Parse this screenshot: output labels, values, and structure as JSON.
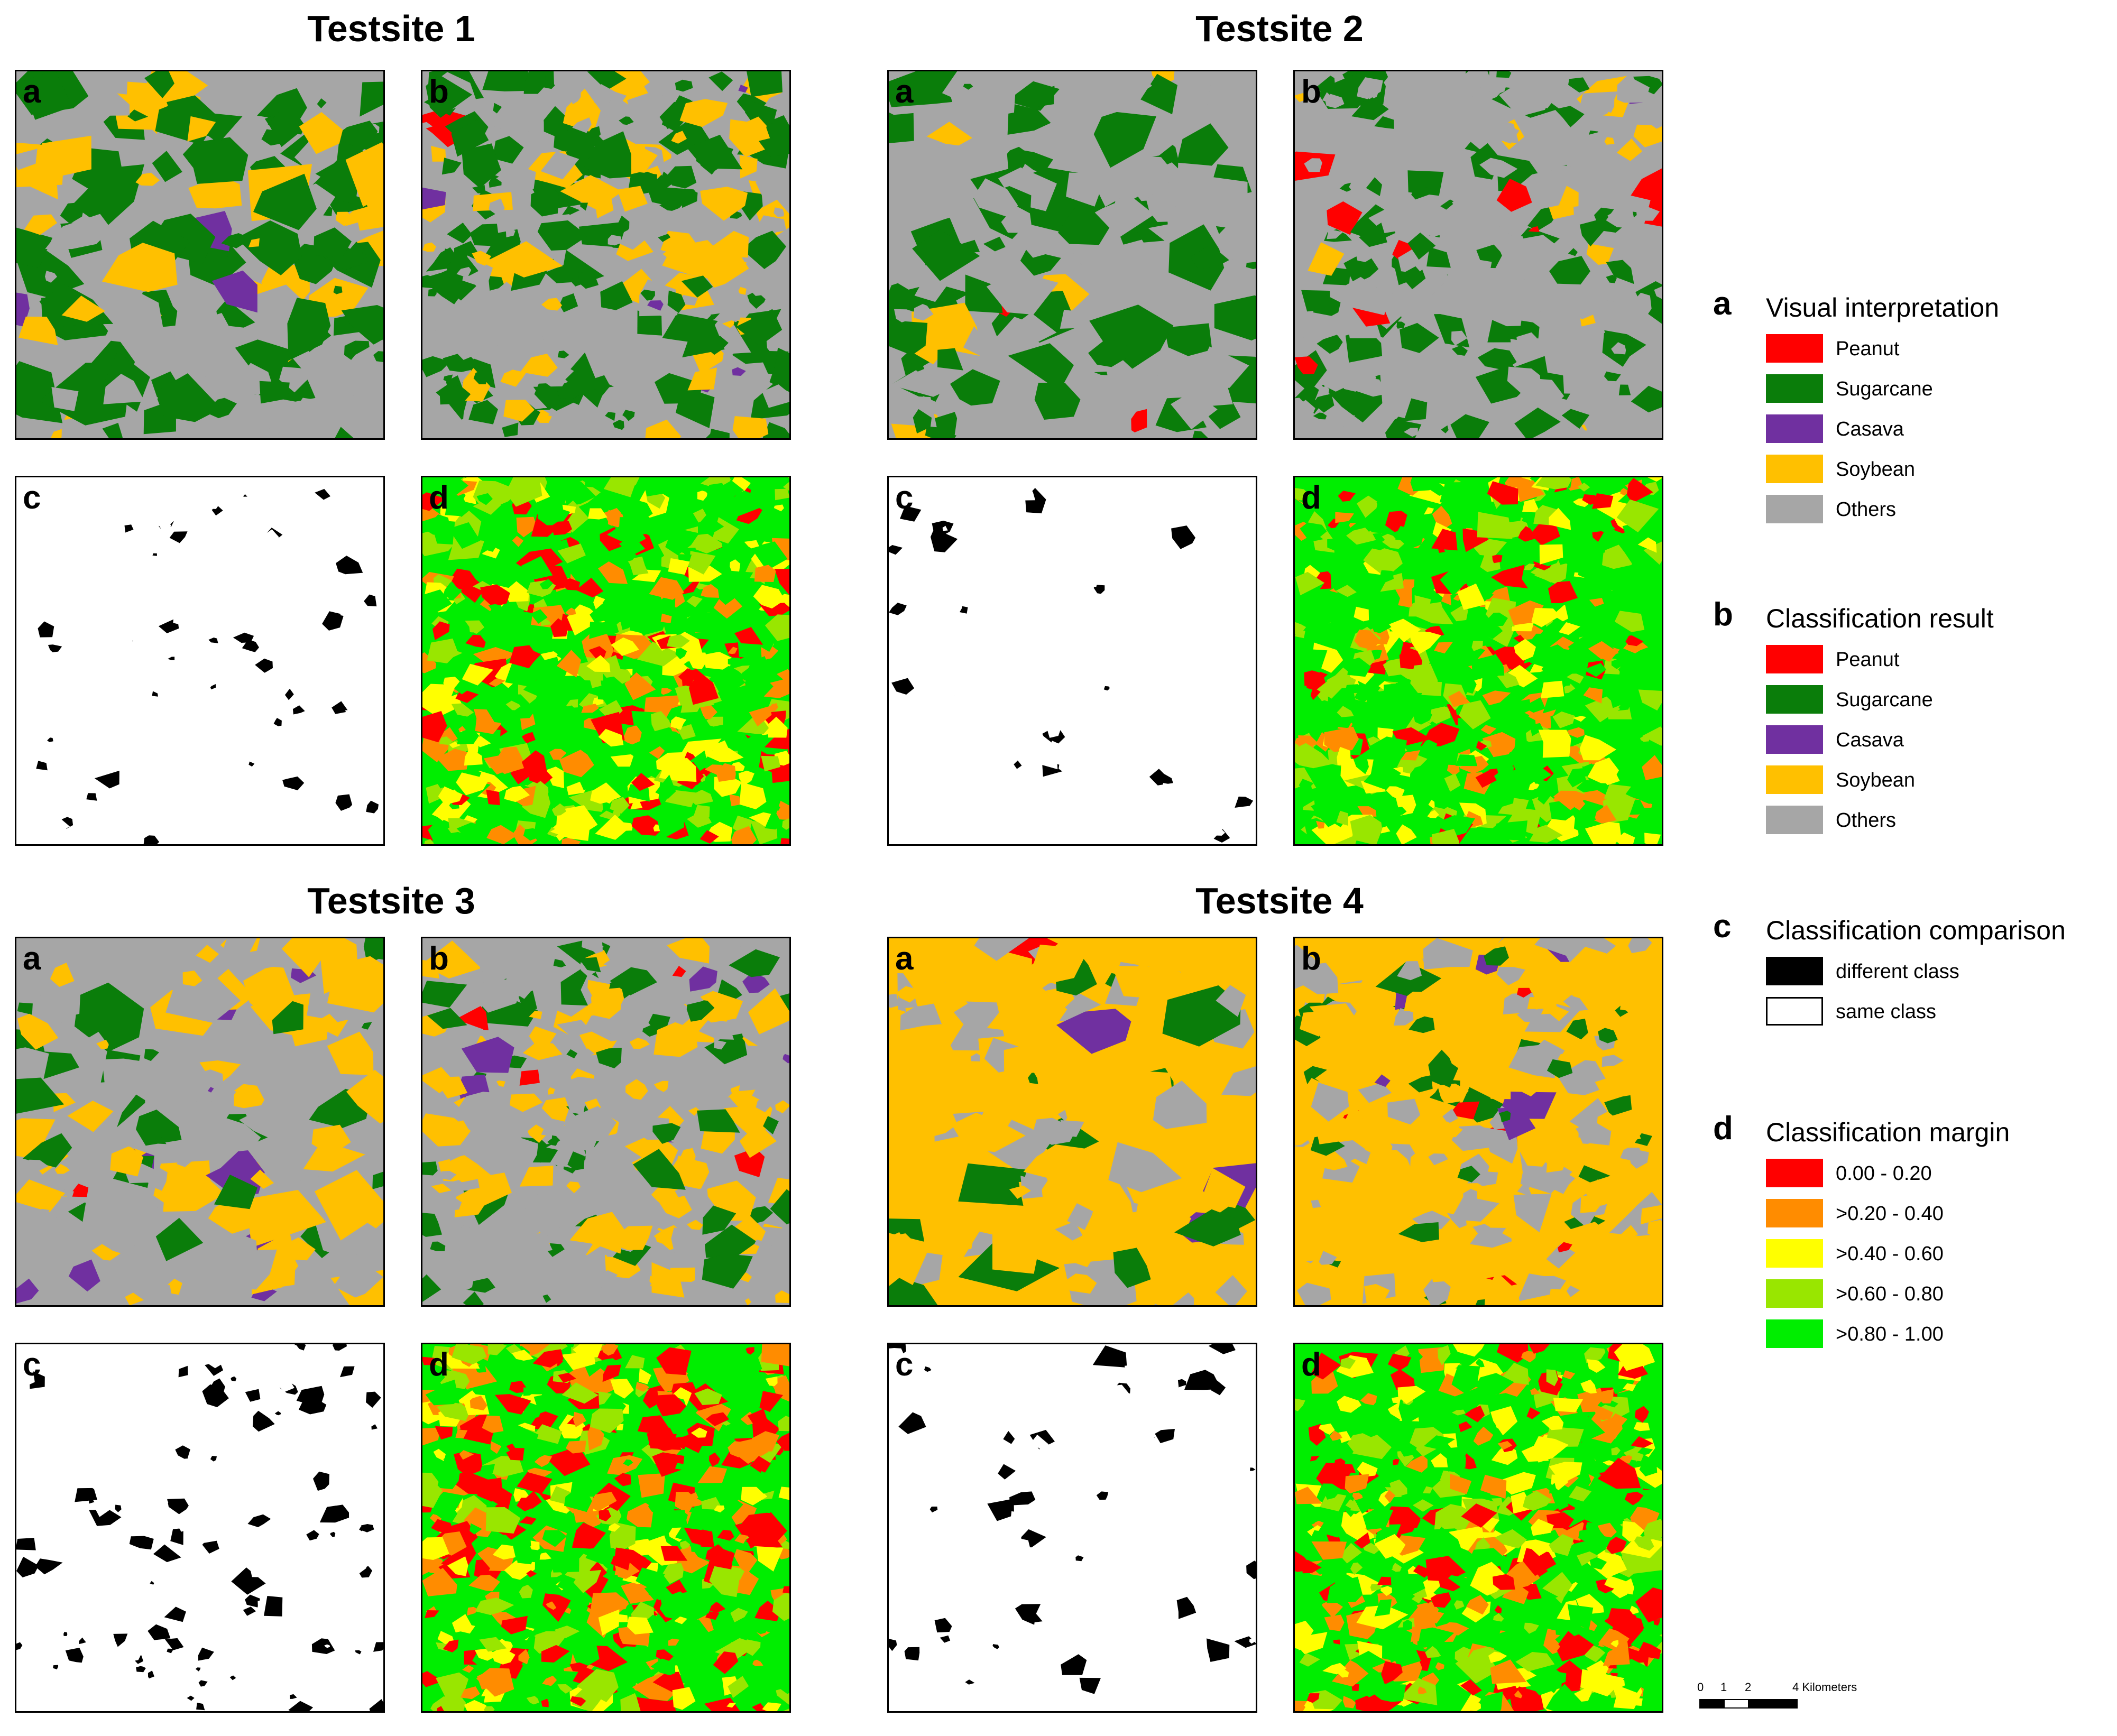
{
  "sites": [
    {
      "title": "Testsite 1",
      "panels": [
        {
          "letter": "a"
        },
        {
          "letter": "b"
        },
        {
          "letter": "c"
        },
        {
          "letter": "d"
        }
      ]
    },
    {
      "title": "Testsite 2",
      "panels": [
        {
          "letter": "a"
        },
        {
          "letter": "b"
        },
        {
          "letter": "c"
        },
        {
          "letter": "d"
        }
      ]
    },
    {
      "title": "Testsite 3",
      "panels": [
        {
          "letter": "a"
        },
        {
          "letter": "b"
        },
        {
          "letter": "c"
        },
        {
          "letter": "d"
        }
      ]
    },
    {
      "title": "Testsite 4",
      "panels": [
        {
          "letter": "a"
        },
        {
          "letter": "b"
        },
        {
          "letter": "c"
        },
        {
          "letter": "d"
        }
      ]
    }
  ],
  "legend": {
    "a": {
      "letter": "a",
      "title": "Visual interpretation",
      "items": [
        {
          "label": "Peanut",
          "color": "#ff0000"
        },
        {
          "label": "Sugarcane",
          "color": "#0a7d0a"
        },
        {
          "label": "Casava",
          "color": "#7030a0"
        },
        {
          "label": "Soybean",
          "color": "#ffc000"
        },
        {
          "label": "Others",
          "color": "#a6a6a6"
        }
      ]
    },
    "b": {
      "letter": "b",
      "title": "Classification result",
      "items": [
        {
          "label": "Peanut",
          "color": "#ff0000"
        },
        {
          "label": "Sugarcane",
          "color": "#0a7d0a"
        },
        {
          "label": "Casava",
          "color": "#7030a0"
        },
        {
          "label": "Soybean",
          "color": "#ffc000"
        },
        {
          "label": "Others",
          "color": "#a6a6a6"
        }
      ]
    },
    "c": {
      "letter": "c",
      "title": "Classification comparison",
      "items": [
        {
          "label": "different class",
          "color": "#000000"
        },
        {
          "label": "same class",
          "color": "#ffffff"
        }
      ]
    },
    "d": {
      "letter": "d",
      "title": "Classification margin",
      "items": [
        {
          "label": "0.00 - 0.20",
          "color": "#ff0000"
        },
        {
          "label": ">0.20 - 0.40",
          "color": "#ff8c00"
        },
        {
          "label": ">0.40 - 0.60",
          "color": "#ffff00"
        },
        {
          "label": ">0.60 - 0.80",
          "color": "#99e600"
        },
        {
          "label": ">0.80 - 1.00",
          "color": "#00ee00"
        }
      ]
    }
  },
  "scalebar": {
    "ticks": [
      "0",
      "1",
      "2",
      "4 Kilometers"
    ]
  }
}
